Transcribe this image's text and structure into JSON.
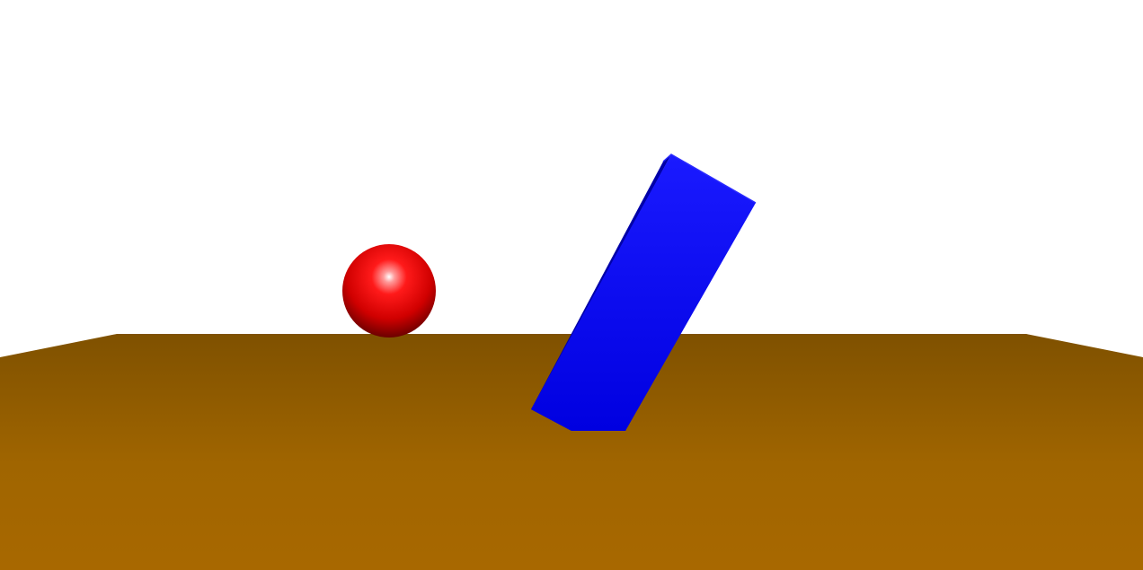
{
  "scene": {
    "objects": [
      {
        "name": "sphere",
        "color": "#ff0000"
      },
      {
        "name": "tilted-box",
        "color": "#0000ff"
      },
      {
        "name": "ground-plane",
        "color": "#a86800"
      }
    ],
    "colors": {
      "sky": "#ffffff",
      "ground_far": "#7f5100",
      "ground_near": "#a86800",
      "sphere_highlight": "#ffffff",
      "sphere_mid": "#ff1a1a",
      "sphere_dark": "#3a0000",
      "box_front_light": "#1a1aff",
      "box_front_dark": "#0000e0",
      "box_side": "#0000a8",
      "box_edge": "#2a2aff"
    }
  }
}
